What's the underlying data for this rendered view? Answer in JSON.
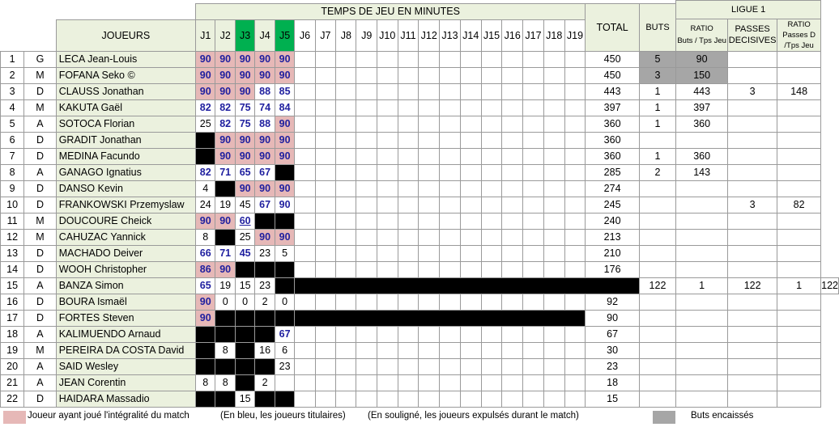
{
  "header": {
    "temps_title": "TEMPS DE JEU EN MINUTES",
    "joueurs_label": "JOUEURS",
    "journees": [
      "J1",
      "J2",
      "J3",
      "J4",
      "J5",
      "J6",
      "J7",
      "J8",
      "J9",
      "J10",
      "J11",
      "J12",
      "J13",
      "J14",
      "J15",
      "J16",
      "J17",
      "J18",
      "J19"
    ],
    "total_label": "TOTAL",
    "ligue_label": "LIGUE 1",
    "buts_label": "BUTS",
    "ratio_buts_label": "RATIO",
    "ratio_buts_sub": "Buts / Tps Jeu",
    "passes_label": "PASSES",
    "passes_sub": "DECISIVES",
    "ratio_passes_label": "RATIO",
    "ratio_passes_sub1": "Passes D",
    "ratio_passes_sub2": "/Tps Jeu"
  },
  "players": [
    {
      "n": "1",
      "pos": "G",
      "name": "LECA Jean-Louis",
      "games": [
        "90",
        "90",
        "90",
        "90",
        "90"
      ],
      "total": "450",
      "buts": "5",
      "ratio_buts": "90",
      "passes": "",
      "ratio_passes": ""
    },
    {
      "n": "2",
      "pos": "M",
      "name": "FOFANA Seko ©",
      "games": [
        "90",
        "90",
        "90",
        "90",
        "90"
      ],
      "total": "450",
      "buts": "3",
      "ratio_buts": "150",
      "passes": "",
      "ratio_passes": ""
    },
    {
      "n": "3",
      "pos": "D",
      "name": "CLAUSS Jonathan",
      "games": [
        "90",
        "90",
        "90",
        "88",
        "85"
      ],
      "total": "443",
      "buts": "1",
      "ratio_buts": "443",
      "passes": "3",
      "ratio_passes": "148"
    },
    {
      "n": "4",
      "pos": "M",
      "name": "KAKUTA Gaël",
      "games": [
        "82",
        "82",
        "75",
        "74",
        "84"
      ],
      "total": "397",
      "buts": "1",
      "ratio_buts": "397",
      "passes": "",
      "ratio_passes": ""
    },
    {
      "n": "5",
      "pos": "A",
      "name": "SOTOCA Florian",
      "games": [
        "25",
        "82",
        "75",
        "88",
        "90"
      ],
      "total": "360",
      "buts": "1",
      "ratio_buts": "360",
      "passes": "",
      "ratio_passes": ""
    },
    {
      "n": "6",
      "pos": "D",
      "name": "GRADIT Jonathan",
      "games": [
        "",
        "90",
        "90",
        "90",
        "90"
      ],
      "total": "360",
      "buts": "",
      "ratio_buts": "",
      "passes": "",
      "ratio_passes": ""
    },
    {
      "n": "7",
      "pos": "D",
      "name": "MEDINA Facundo",
      "games": [
        "",
        "90",
        "90",
        "90",
        "90"
      ],
      "total": "360",
      "buts": "1",
      "ratio_buts": "360",
      "passes": "",
      "ratio_passes": ""
    },
    {
      "n": "8",
      "pos": "A",
      "name": "GANAGO Ignatius",
      "games": [
        "82",
        "71",
        "65",
        "67",
        ""
      ],
      "total": "285",
      "buts": "2",
      "ratio_buts": "143",
      "passes": "",
      "ratio_passes": ""
    },
    {
      "n": "9",
      "pos": "D",
      "name": "DANSO Kevin",
      "games": [
        "4",
        "",
        "90",
        "90",
        "90"
      ],
      "total": "274",
      "buts": "",
      "ratio_buts": "",
      "passes": "",
      "ratio_passes": ""
    },
    {
      "n": "10",
      "pos": "D",
      "name": "FRANKOWSKI Przemyslaw",
      "games": [
        "24",
        "19",
        "45",
        "67",
        "90"
      ],
      "total": "245",
      "buts": "",
      "ratio_buts": "",
      "passes": "3",
      "ratio_passes": "82"
    },
    {
      "n": "11",
      "pos": "M",
      "name": "DOUCOURE Cheick",
      "games": [
        "90",
        "90",
        "60",
        "",
        ""
      ],
      "total": "240",
      "buts": "",
      "ratio_buts": "",
      "passes": "",
      "ratio_passes": ""
    },
    {
      "n": "12",
      "pos": "M",
      "name": "CAHUZAC Yannick",
      "games": [
        "8",
        "",
        "25",
        "90",
        "90"
      ],
      "total": "213",
      "buts": "",
      "ratio_buts": "",
      "passes": "",
      "ratio_passes": ""
    },
    {
      "n": "13",
      "pos": "D",
      "name": "MACHADO Deiver",
      "games": [
        "66",
        "71",
        "45",
        "23",
        "5"
      ],
      "total": "210",
      "buts": "",
      "ratio_buts": "",
      "passes": "",
      "ratio_passes": ""
    },
    {
      "n": "14",
      "pos": "D",
      "name": "WOOH Christopher",
      "games": [
        "86",
        "90",
        "",
        "",
        ""
      ],
      "total": "176",
      "buts": "",
      "ratio_buts": "",
      "passes": "",
      "ratio_passes": ""
    },
    {
      "n": "15",
      "pos": "A",
      "name": "BANZA Simon",
      "games": [
        "65",
        "19",
        "15",
        "23",
        ""
      ],
      "total": "122",
      "buts": "1",
      "ratio_buts": "122",
      "passes": "1",
      "ratio_passes": "122"
    },
    {
      "n": "16",
      "pos": "D",
      "name": "BOURA Ismaël",
      "games": [
        "90",
        "0",
        "0",
        "2",
        "0"
      ],
      "total": "92",
      "buts": "",
      "ratio_buts": "",
      "passes": "",
      "ratio_passes": ""
    },
    {
      "n": "17",
      "pos": "D",
      "name": "FORTES Steven",
      "games": [
        "90",
        "",
        "",
        "",
        ""
      ],
      "total": "90",
      "buts": "",
      "ratio_buts": "",
      "passes": "",
      "ratio_passes": ""
    },
    {
      "n": "18",
      "pos": "A",
      "name": "KALIMUENDO Arnaud",
      "games": [
        "",
        "",
        "",
        "",
        "67"
      ],
      "total": "67",
      "buts": "",
      "ratio_buts": "",
      "passes": "",
      "ratio_passes": ""
    },
    {
      "n": "19",
      "pos": "M",
      "name": "PEREIRA DA COSTA David",
      "games": [
        "",
        "8",
        "",
        "16",
        "6"
      ],
      "total": "30",
      "buts": "",
      "ratio_buts": "",
      "passes": "",
      "ratio_passes": ""
    },
    {
      "n": "20",
      "pos": "A",
      "name": "SAID Wesley",
      "games": [
        "",
        "",
        "",
        "",
        "23"
      ],
      "total": "23",
      "buts": "",
      "ratio_buts": "",
      "passes": "",
      "ratio_passes": ""
    },
    {
      "n": "21",
      "pos": "A",
      "name": "JEAN Corentin",
      "games": [
        "8",
        "8",
        "",
        "2",
        ""
      ],
      "total": "18",
      "buts": "",
      "ratio_buts": "",
      "passes": "",
      "ratio_passes": ""
    },
    {
      "n": "22",
      "pos": "D",
      "name": "HAIDARA Massadio",
      "games": [
        "",
        "",
        "15",
        "",
        ""
      ],
      "total": "15",
      "buts": "",
      "ratio_buts": "",
      "passes": "",
      "ratio_passes": ""
    }
  ],
  "legend": {
    "full_match": "Joueur ayant joué l'intégralité du match",
    "blue_note": "(En bleu, les joueurs titulaires)",
    "underline_note": "(En souligné, les joueurs expulsés durant le match)",
    "goals_conceded": "Buts encaissés"
  },
  "colors": {
    "header_bg": "#ebf1de",
    "green_journee": "#00b050",
    "pink_full_match": "#e6b8b7",
    "black_absent": "#000000",
    "gray_goals_conceded": "#a6a6a6",
    "blue_starter": "#1f1f9f"
  }
}
